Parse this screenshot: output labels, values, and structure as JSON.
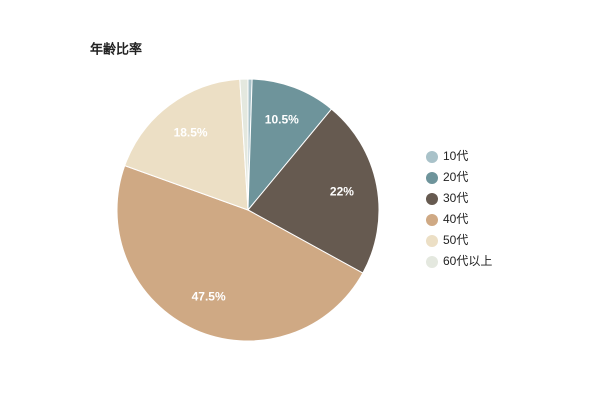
{
  "chart_data": {
    "type": "pie",
    "title": "年齢比率",
    "categories": [
      "10代",
      "20代",
      "30代",
      "40代",
      "50代",
      "60代以上"
    ],
    "values": [
      0.5,
      10.5,
      22,
      47.5,
      18.5,
      1
    ],
    "value_labels": [
      null,
      "10.5%",
      "22%",
      "47.5%",
      "18.5%",
      null
    ],
    "colors": [
      "#a9c2c9",
      "#6e949b",
      "#665a50",
      "#cfa984",
      "#ecdfc5",
      "#e4e8df"
    ],
    "legend": "right"
  }
}
